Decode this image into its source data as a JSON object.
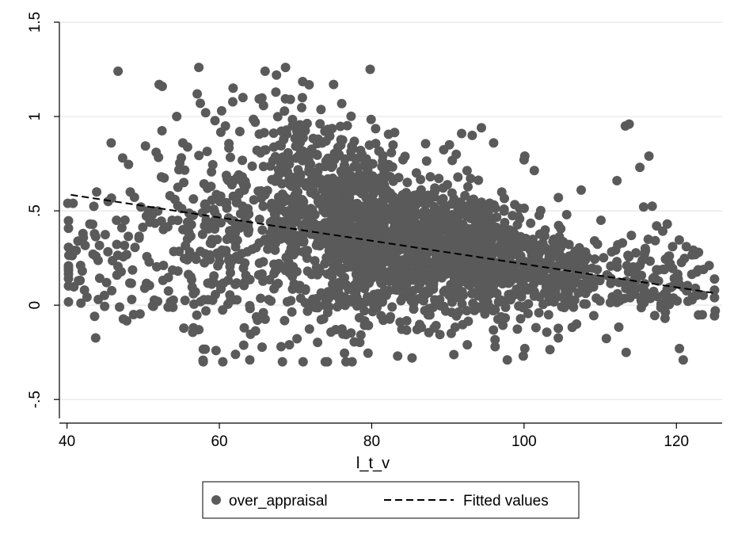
{
  "chart_data": {
    "type": "scatter",
    "title": "",
    "xlabel": "l_t_v",
    "ylabel": "",
    "xlim": [
      39,
      126
    ],
    "ylim": [
      -0.6,
      1.5
    ],
    "x_ticks": [
      "40",
      "60",
      "80",
      "100",
      "120"
    ],
    "x_tick_values": [
      40,
      60,
      80,
      100,
      120
    ],
    "y_ticks": [
      "-.5",
      "0",
      ".5",
      "1",
      "1.5"
    ],
    "y_tick_values": [
      -0.5,
      0,
      0.5,
      1,
      1.5
    ],
    "grid": "horizontal",
    "legend_position": "bottom",
    "colors": {
      "points": "#5a5a5a",
      "fit": "#000000",
      "grid": "#e6e6e6",
      "frame": "#000000"
    },
    "series": [
      {
        "name": "over_appraisal",
        "type": "scatter",
        "clusters": [
          {
            "x_center": 45,
            "x_spread": 4,
            "y_center": 0.22,
            "y_spread": 0.15,
            "count": 60
          },
          {
            "x_center": 55,
            "x_spread": 4,
            "y_center": 0.3,
            "y_spread": 0.25,
            "count": 90
          },
          {
            "x_center": 62,
            "x_spread": 4,
            "y_center": 0.4,
            "y_spread": 0.3,
            "count": 170
          },
          {
            "x_center": 70,
            "x_spread": 3,
            "y_center": 0.5,
            "y_spread": 0.28,
            "count": 300
          },
          {
            "x_center": 78,
            "x_spread": 3,
            "y_center": 0.4,
            "y_spread": 0.25,
            "count": 560
          },
          {
            "x_center": 86,
            "x_spread": 4,
            "y_center": 0.3,
            "y_spread": 0.18,
            "count": 520
          },
          {
            "x_center": 95,
            "x_spread": 4,
            "y_center": 0.25,
            "y_spread": 0.17,
            "count": 420
          },
          {
            "x_center": 104,
            "x_spread": 3,
            "y_center": 0.18,
            "y_spread": 0.14,
            "count": 140
          },
          {
            "x_center": 115,
            "x_spread": 5,
            "y_center": 0.13,
            "y_spread": 0.11,
            "count": 150
          }
        ],
        "points": [
          [
            46.7,
            1.24
          ],
          [
            57.3,
            1.26
          ],
          [
            52.1,
            1.17
          ],
          [
            52.5,
            1.16
          ],
          [
            66,
            1.24
          ],
          [
            79.8,
            1.25
          ],
          [
            67.5,
            1.22
          ],
          [
            61.8,
            1.15
          ],
          [
            45.8,
            0.86
          ],
          [
            51.7,
            0.81
          ],
          [
            47.3,
            0.78
          ],
          [
            55.2,
            0.86
          ],
          [
            54.4,
            1.0
          ],
          [
            58.2,
            1.02
          ],
          [
            57.5,
            1.07
          ],
          [
            57.1,
            1.12
          ],
          [
            60.3,
            1.03
          ],
          [
            60.8,
            0.95
          ],
          [
            64.7,
            0.97
          ],
          [
            70.9,
            1.1
          ],
          [
            75,
            1.17
          ],
          [
            91.8,
            0.91
          ],
          [
            93.2,
            0.9
          ],
          [
            94.4,
            0.94
          ],
          [
            90.2,
            0.85
          ],
          [
            91.1,
            0.8
          ],
          [
            96,
            0.86
          ],
          [
            100,
            0.77
          ],
          [
            100.1,
            0.79
          ],
          [
            113.3,
            0.95
          ],
          [
            113.8,
            0.96
          ],
          [
            115.2,
            0.73
          ],
          [
            116.4,
            0.79
          ],
          [
            112.2,
            0.66
          ],
          [
            107.5,
            0.61
          ],
          [
            104.5,
            0.57
          ],
          [
            105.6,
            0.48
          ],
          [
            110.1,
            0.45
          ],
          [
            112.3,
            0.32
          ],
          [
            115.7,
            0.52
          ],
          [
            117.4,
            0.42
          ],
          [
            118.8,
            0.43
          ],
          [
            119.5,
            0.31
          ],
          [
            121.3,
            0.31
          ],
          [
            122.9,
            0.28
          ],
          [
            124.3,
            0.21
          ],
          [
            125.1,
            -0.03
          ],
          [
            120.4,
            -0.23
          ],
          [
            120.9,
            -0.29
          ],
          [
            113.4,
            -0.25
          ],
          [
            106.9,
            -0.1
          ],
          [
            97.8,
            -0.29
          ],
          [
            99.9,
            -0.27
          ],
          [
            100.1,
            -0.23
          ],
          [
            96.2,
            -0.22
          ],
          [
            85.3,
            -0.28
          ],
          [
            83.4,
            -0.27
          ],
          [
            64,
            -0.29
          ],
          [
            69.2,
            -0.21
          ],
          [
            68.1,
            -0.22
          ],
          [
            56.6,
            -0.12
          ],
          [
            57.3,
            -0.13
          ],
          [
            40.1,
            0.54
          ],
          [
            40.8,
            0.54
          ],
          [
            41.2,
            0.29
          ],
          [
            42.1,
            0.38
          ],
          [
            43,
            0.43
          ],
          [
            43.9,
            0.6
          ],
          [
            45.4,
            0.55
          ],
          [
            46.5,
            0.45
          ],
          [
            47.2,
            0.41
          ],
          [
            48.3,
            0.6
          ],
          [
            49.7,
            0.52
          ],
          [
            51.2,
            0.48
          ],
          [
            52.4,
            0.68
          ],
          [
            53.8,
            0.45
          ],
          [
            40.9,
            0.29
          ],
          [
            41.5,
            0.13
          ],
          [
            42.3,
            0.08
          ],
          [
            44.1,
            0.03
          ],
          [
            45.2,
            0.12
          ],
          [
            46.9,
            -0.01
          ],
          [
            48.5,
            0.03
          ],
          [
            50.2,
            0.09
          ],
          [
            51.9,
            0.02
          ],
          [
            53.3,
            -0.01
          ]
        ]
      },
      {
        "name": "Fitted values",
        "type": "line",
        "style": "dashed",
        "x": [
          40.5,
          124.8
        ],
        "y": [
          0.585,
          0.065
        ]
      }
    ]
  }
}
